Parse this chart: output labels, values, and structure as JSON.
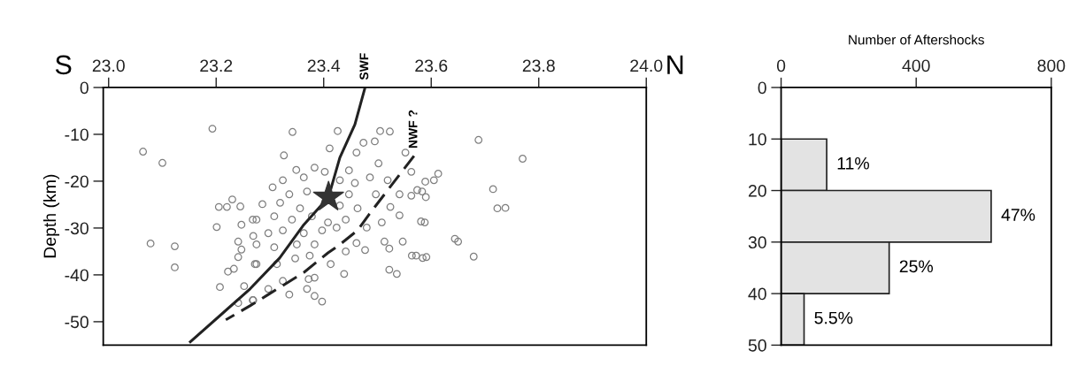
{
  "chart_data": [
    {
      "type": "scatter",
      "ylabel": "Depth (km)",
      "annotations": [
        "S",
        "N"
      ],
      "xlim": [
        22.99,
        24.0
      ],
      "ylim": [
        -55,
        0
      ],
      "xticks": [
        {
          "value": 23.0,
          "label": "23.0"
        },
        {
          "value": 23.2,
          "label": "23.2"
        },
        {
          "value": 23.4,
          "label": "23.4"
        },
        {
          "value": 23.6,
          "label": "23.6"
        },
        {
          "value": 23.8,
          "label": "23.8"
        },
        {
          "value": 24.0,
          "label": "24.0"
        }
      ],
      "yticks": [
        0,
        -10,
        -20,
        -30,
        -40,
        -50
      ],
      "grid": false,
      "series": [
        {
          "type": "scatter",
          "marker": "circle",
          "color": "#7f7f7f",
          "x": [
            23.193,
            23.064,
            23.1,
            23.23,
            23.205,
            23.22,
            23.245,
            23.201,
            23.078,
            23.123,
            23.123,
            23.222,
            23.233,
            23.207,
            23.247,
            23.268,
            23.241,
            23.247,
            23.241,
            23.272,
            23.252,
            23.241,
            23.268,
            23.342,
            23.426,
            23.505,
            23.523,
            23.326,
            23.411,
            23.474,
            23.495,
            23.349,
            23.383,
            23.447,
            23.461,
            23.502,
            23.552,
            23.563,
            23.305,
            23.324,
            23.363,
            23.402,
            23.43,
            23.458,
            23.486,
            23.519,
            23.336,
            23.369,
            23.447,
            23.497,
            23.541,
            23.563,
            23.583,
            23.286,
            23.319,
            23.356,
            23.43,
            23.463,
            23.524,
            23.541,
            23.588,
            23.275,
            23.308,
            23.341,
            23.378,
            23.408,
            23.441,
            23.508,
            23.269,
            23.297,
            23.324,
            23.363,
            23.397,
            23.424,
            23.48,
            23.275,
            23.308,
            23.35,
            23.383,
            23.441,
            23.461,
            23.477,
            23.513,
            23.522,
            23.547,
            23.572,
            23.591,
            23.275,
            23.313,
            23.347,
            23.374,
            23.413,
            23.438,
            23.522,
            23.536,
            23.297,
            23.324,
            23.372,
            23.383,
            23.369,
            23.336,
            23.383,
            23.397,
            23.269,
            23.688,
            23.77,
            23.613,
            23.605,
            23.589,
            23.574,
            23.59,
            23.715,
            23.723,
            23.738,
            23.581,
            23.644,
            23.65,
            23.679,
            23.564,
            23.584
          ],
          "values": [
            -8.8,
            -13.7,
            -16.1,
            -23.9,
            -25.5,
            -25.5,
            -25.4,
            -29.8,
            -33.3,
            -33.9,
            -38.4,
            -39.3,
            -38.7,
            -42.6,
            -29.3,
            -28.2,
            -32.9,
            -34.6,
            -36.2,
            -37.7,
            -42.4,
            -46.0,
            -45.4,
            -9.5,
            -9.3,
            -9.3,
            -9.4,
            -14.5,
            -13.0,
            -11.8,
            -11.5,
            -17.6,
            -17.1,
            -17.7,
            -13.9,
            -16.2,
            -13.9,
            -18.0,
            -21.3,
            -19.8,
            -19.2,
            -18.0,
            -19.8,
            -20.4,
            -19.2,
            -19.8,
            -22.8,
            -22.2,
            -22.8,
            -22.8,
            -22.8,
            -23.1,
            -22.2,
            -24.9,
            -24.6,
            -25.8,
            -25.2,
            -25.8,
            -25.5,
            -27.3,
            -28.8,
            -28.2,
            -27.5,
            -28.2,
            -27.5,
            -28.8,
            -28.2,
            -28.8,
            -31.7,
            -31.1,
            -30.5,
            -31.1,
            -30.5,
            -29.9,
            -29.9,
            -33.5,
            -34.1,
            -33.5,
            -33.5,
            -35.0,
            -33.2,
            -34.7,
            -32.9,
            -34.4,
            -32.9,
            -35.9,
            -36.2,
            -37.7,
            -37.7,
            -36.5,
            -35.9,
            -37.7,
            -39.8,
            -38.9,
            -39.8,
            -43.0,
            -41.3,
            -40.9,
            -40.6,
            -43.0,
            -44.2,
            -44.5,
            -45.7,
            -45.4,
            -11.2,
            -15.2,
            -18.4,
            -19.8,
            -20.1,
            -21.9,
            -23.4,
            -21.7,
            -25.8,
            -25.7,
            -28.6,
            -32.3,
            -32.9,
            -36.1,
            -35.9,
            -36.4
          ]
        },
        {
          "type": "line",
          "name": "SWF",
          "line_style": "solid",
          "color": "#222222",
          "x": [
            23.477,
            23.458,
            23.43,
            23.409,
            23.363,
            23.318,
            23.263,
            23.152
          ],
          "values": [
            0,
            -7.9,
            -15,
            -23.4,
            -29.3,
            -36.4,
            -43.0,
            -54.3
          ]
        },
        {
          "type": "line",
          "name": "NWF ?",
          "line_style": "dashed",
          "color": "#222222",
          "x": [
            23.568,
            23.485,
            23.463,
            23.427,
            23.408,
            23.363,
            23.297,
            23.263,
            23.218
          ],
          "values": [
            -14.6,
            -27,
            -30.5,
            -33.8,
            -35.3,
            -39.5,
            -44.2,
            -46.6,
            -49.6
          ]
        },
        {
          "type": "scatter",
          "marker": "star",
          "color": "#333333",
          "x": [
            23.409
          ],
          "values": [
            -23.4
          ]
        }
      ]
    },
    {
      "type": "histogram",
      "orientation": "horizontal",
      "xlabel": "Number of Aftershocks",
      "bins": [
        10,
        20,
        30,
        40,
        50
      ],
      "values": [
        135,
        622,
        320,
        68
      ],
      "color": "#e3e3e3",
      "annotations": [
        {
          "text": "11%",
          "x": 135,
          "y": 15
        },
        {
          "text": "47%",
          "x": 622,
          "y": 25
        },
        {
          "text": "25%",
          "x": 320,
          "y": 35
        },
        {
          "text": "5.5%",
          "x": 68,
          "y": 45
        }
      ],
      "xlim": [
        0,
        800
      ],
      "xticks": [
        0,
        400,
        800
      ],
      "ylim": [
        50,
        0
      ],
      "yticks": [
        0,
        10,
        20,
        30,
        40,
        50
      ],
      "grid": false
    }
  ]
}
